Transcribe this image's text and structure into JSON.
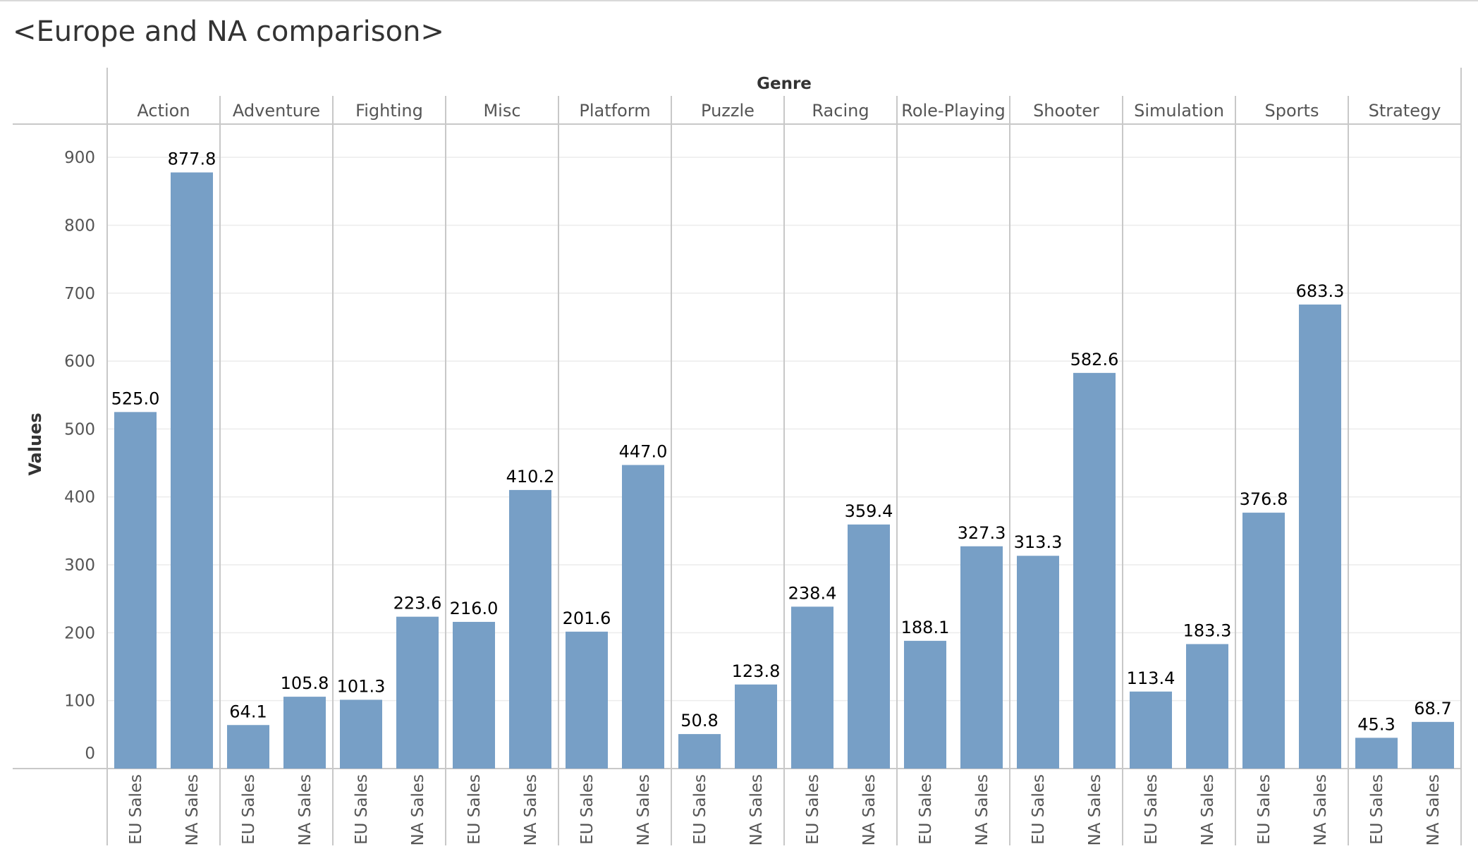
{
  "title": "<Europe and NA comparison>",
  "colors": {
    "bar": "#779fc6",
    "text": "#000000",
    "axis_text": "#555555",
    "grid": "#ececec",
    "divider": "#c8c8c8"
  },
  "chart_data": {
    "type": "bar",
    "column_header": "Genre",
    "ylabel": "Values",
    "ylim": [
      0,
      950
    ],
    "yticks": [
      0,
      100,
      200,
      300,
      400,
      500,
      600,
      700,
      800,
      900
    ],
    "grid": true,
    "categories": [
      "Action",
      "Adventure",
      "Fighting",
      "Misc",
      "Platform",
      "Puzzle",
      "Racing",
      "Role-Playing",
      "Shooter",
      "Simulation",
      "Sports",
      "Strategy"
    ],
    "series": [
      {
        "name": "EU Sales",
        "values": [
          525.0,
          64.1,
          101.3,
          216.0,
          201.6,
          50.8,
          238.4,
          188.1,
          313.3,
          113.4,
          376.8,
          45.3
        ]
      },
      {
        "name": "NA Sales",
        "values": [
          877.8,
          105.8,
          223.6,
          410.2,
          447.0,
          123.8,
          359.4,
          327.3,
          582.6,
          183.3,
          683.3,
          68.7
        ]
      }
    ]
  }
}
